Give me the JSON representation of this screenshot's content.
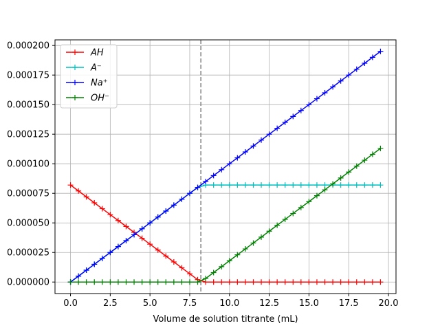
{
  "chart_data": {
    "type": "line",
    "xlabel": "Volume de solution titrante (mL)",
    "ylabel": "",
    "xlim": [
      -0.975,
      20.475
    ],
    "ylim": [
      -9.75e-06,
      0.00020475
    ],
    "x_ticks": [
      0,
      2.5,
      5,
      7.5,
      10,
      12.5,
      15,
      17.5,
      20
    ],
    "x_tick_labels": [
      "0.0",
      "2.5",
      "5.0",
      "7.5",
      "10.0",
      "12.5",
      "15.0",
      "17.5",
      "20.0"
    ],
    "y_ticks": [
      0,
      2.5e-05,
      5e-05,
      7.5e-05,
      0.0001,
      0.000125,
      0.00015,
      0.000175,
      0.0002
    ],
    "y_tick_labels": [
      "0.000000",
      "0.000025",
      "0.000050",
      "0.000075",
      "0.000100",
      "0.000125",
      "0.000150",
      "0.000175",
      "0.000200"
    ],
    "grid": true,
    "legend_position": "top-left",
    "equivalence_volume": 8.2,
    "x": [
      0,
      0.5,
      1,
      1.5,
      2,
      2.5,
      3,
      3.5,
      4,
      4.5,
      5,
      5.5,
      6,
      6.5,
      7,
      7.5,
      8,
      8.5,
      9,
      9.5,
      10,
      10.5,
      11,
      11.5,
      12,
      12.5,
      13,
      13.5,
      14,
      14.5,
      15,
      15.5,
      16,
      16.5,
      17,
      17.5,
      18,
      18.5,
      19,
      19.5
    ],
    "series": [
      {
        "name": "AH",
        "color": "#ff0000",
        "values": [
          8.2e-05,
          7.7e-05,
          7.2e-05,
          6.7e-05,
          6.2e-05,
          5.7e-05,
          5.2e-05,
          4.7e-05,
          4.2e-05,
          3.7e-05,
          3.2e-05,
          2.7e-05,
          2.2e-05,
          1.7e-05,
          1.2e-05,
          7e-06,
          2e-06,
          0,
          0,
          0,
          0,
          0,
          0,
          0,
          0,
          0,
          0,
          0,
          0,
          0,
          0,
          0,
          0,
          0,
          0,
          0,
          0,
          0,
          0,
          0
        ]
      },
      {
        "name": "A⁻",
        "color": "#00bfbf",
        "values": [
          0,
          5e-06,
          1e-05,
          1.5e-05,
          2e-05,
          2.5e-05,
          3e-05,
          3.5e-05,
          4e-05,
          4.5e-05,
          5e-05,
          5.5e-05,
          6e-05,
          6.5e-05,
          7e-05,
          7.5e-05,
          8e-05,
          8.2e-05,
          8.2e-05,
          8.2e-05,
          8.2e-05,
          8.2e-05,
          8.2e-05,
          8.2e-05,
          8.2e-05,
          8.2e-05,
          8.2e-05,
          8.2e-05,
          8.2e-05,
          8.2e-05,
          8.2e-05,
          8.2e-05,
          8.2e-05,
          8.2e-05,
          8.2e-05,
          8.2e-05,
          8.2e-05,
          8.2e-05,
          8.2e-05,
          8.2e-05
        ]
      },
      {
        "name": "Na⁺",
        "color": "#0000ff",
        "values": [
          0,
          5e-06,
          1e-05,
          1.5e-05,
          2e-05,
          2.5e-05,
          3e-05,
          3.5e-05,
          4e-05,
          4.5e-05,
          5e-05,
          5.5e-05,
          6e-05,
          6.5e-05,
          7e-05,
          7.5e-05,
          8e-05,
          8.5e-05,
          9e-05,
          9.5e-05,
          0.0001,
          0.000105,
          0.00011,
          0.000115,
          0.00012,
          0.000125,
          0.00013,
          0.000135,
          0.00014,
          0.000145,
          0.00015,
          0.000155,
          0.00016,
          0.000165,
          0.00017,
          0.000175,
          0.00018,
          0.000185,
          0.00019,
          0.000195
        ]
      },
      {
        "name": "OH⁻",
        "color": "#008000",
        "values": [
          0,
          0,
          0,
          0,
          0,
          0,
          0,
          0,
          0,
          0,
          0,
          0,
          0,
          0,
          0,
          0,
          0,
          3e-06,
          8e-06,
          1.3e-05,
          1.8e-05,
          2.3e-05,
          2.8e-05,
          3.3e-05,
          3.8e-05,
          4.3e-05,
          4.8e-05,
          5.3e-05,
          5.8e-05,
          6.3e-05,
          6.8e-05,
          7.3e-05,
          7.8e-05,
          8.3e-05,
          8.8e-05,
          9.3e-05,
          9.8e-05,
          0.000103,
          0.000108,
          0.000113
        ]
      }
    ]
  }
}
